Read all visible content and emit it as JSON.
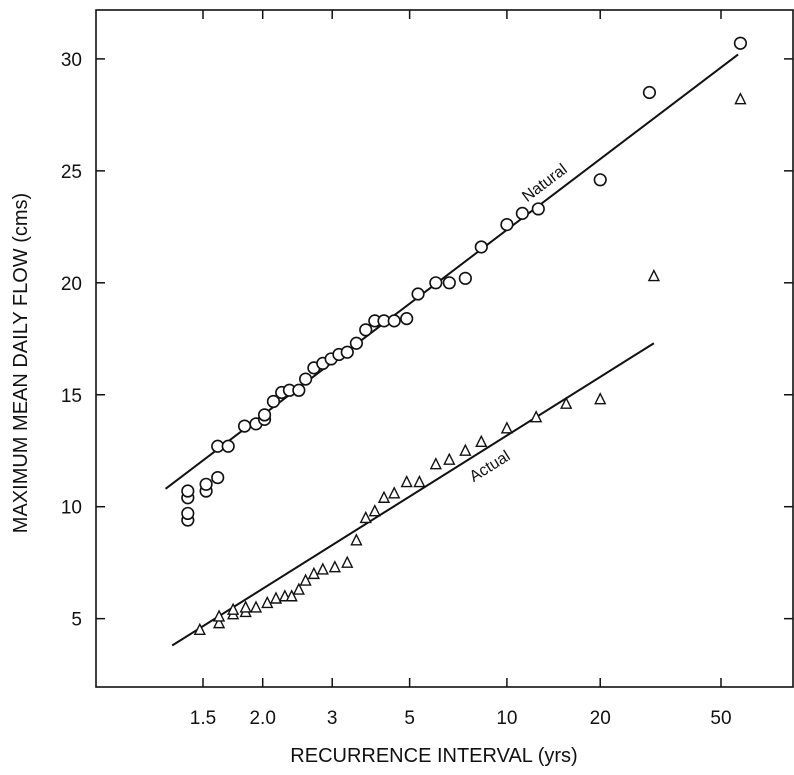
{
  "chart_data": {
    "type": "scatter",
    "title": "",
    "xlabel": "RECURRENCE INTERVAL (yrs)",
    "ylabel": "MAXIMUM MEAN DAILY FLOW (cms)",
    "x_scale": "gumbel-probability",
    "xlim": [
      1.05,
      200
    ],
    "ylim": [
      2,
      33
    ],
    "x_ticks": [
      {
        "value": 1.5,
        "label": "1.5"
      },
      {
        "value": 2.0,
        "label": "2.0"
      },
      {
        "value": 3,
        "label": "3"
      },
      {
        "value": 5,
        "label": "5"
      },
      {
        "value": 10,
        "label": "10"
      },
      {
        "value": 20,
        "label": "20"
      },
      {
        "value": 50,
        "label": "50"
      }
    ],
    "y_ticks": [
      {
        "value": 5,
        "label": "5"
      },
      {
        "value": 10,
        "label": "10"
      },
      {
        "value": 15,
        "label": "15"
      },
      {
        "value": 20,
        "label": "20"
      },
      {
        "value": 25,
        "label": "25"
      },
      {
        "value": 30,
        "label": "30"
      }
    ],
    "grid": false,
    "legend": "none",
    "series": [
      {
        "name": "Natural",
        "marker": "circle",
        "color": "#111111",
        "fit_line": {
          "x": [
            1.3,
            57
          ],
          "y": [
            10.8,
            30.2
          ]
        },
        "points": [
          {
            "x": 1.41,
            "y": 9.4
          },
          {
            "x": 1.41,
            "y": 9.7
          },
          {
            "x": 1.41,
            "y": 10.4
          },
          {
            "x": 1.41,
            "y": 10.7
          },
          {
            "x": 1.52,
            "y": 10.7
          },
          {
            "x": 1.52,
            "y": 11.0
          },
          {
            "x": 1.6,
            "y": 11.3
          },
          {
            "x": 1.6,
            "y": 12.7
          },
          {
            "x": 1.68,
            "y": 12.7
          },
          {
            "x": 1.82,
            "y": 13.6
          },
          {
            "x": 1.93,
            "y": 13.7
          },
          {
            "x": 2.02,
            "y": 13.9
          },
          {
            "x": 2.02,
            "y": 14.1
          },
          {
            "x": 2.12,
            "y": 14.7
          },
          {
            "x": 2.22,
            "y": 15.1
          },
          {
            "x": 2.32,
            "y": 15.2
          },
          {
            "x": 2.45,
            "y": 15.2
          },
          {
            "x": 2.55,
            "y": 15.7
          },
          {
            "x": 2.68,
            "y": 16.2
          },
          {
            "x": 2.83,
            "y": 16.4
          },
          {
            "x": 2.98,
            "y": 16.6
          },
          {
            "x": 3.13,
            "y": 16.8
          },
          {
            "x": 3.3,
            "y": 16.9
          },
          {
            "x": 3.5,
            "y": 17.3
          },
          {
            "x": 3.72,
            "y": 17.9
          },
          {
            "x": 3.95,
            "y": 18.3
          },
          {
            "x": 4.2,
            "y": 18.3
          },
          {
            "x": 4.5,
            "y": 18.3
          },
          {
            "x": 4.9,
            "y": 18.4
          },
          {
            "x": 5.3,
            "y": 19.5
          },
          {
            "x": 6.0,
            "y": 20.0
          },
          {
            "x": 6.6,
            "y": 20.0
          },
          {
            "x": 7.4,
            "y": 20.2
          },
          {
            "x": 8.3,
            "y": 21.6
          },
          {
            "x": 10.0,
            "y": 22.6
          },
          {
            "x": 11.2,
            "y": 23.1
          },
          {
            "x": 12.6,
            "y": 23.3
          },
          {
            "x": 20.0,
            "y": 24.6
          },
          {
            "x": 29.0,
            "y": 28.5
          },
          {
            "x": 58.0,
            "y": 30.7
          }
        ]
      },
      {
        "name": "Actual",
        "marker": "triangle",
        "color": "#111111",
        "fit_line": {
          "x": [
            1.33,
            30
          ],
          "y": [
            3.8,
            17.3
          ]
        },
        "points": [
          {
            "x": 1.48,
            "y": 4.5
          },
          {
            "x": 1.61,
            "y": 4.8
          },
          {
            "x": 1.61,
            "y": 5.1
          },
          {
            "x": 1.72,
            "y": 5.2
          },
          {
            "x": 1.72,
            "y": 5.4
          },
          {
            "x": 1.83,
            "y": 5.3
          },
          {
            "x": 1.83,
            "y": 5.5
          },
          {
            "x": 1.93,
            "y": 5.5
          },
          {
            "x": 2.05,
            "y": 5.7
          },
          {
            "x": 2.15,
            "y": 5.9
          },
          {
            "x": 2.26,
            "y": 6.0
          },
          {
            "x": 2.35,
            "y": 6.0
          },
          {
            "x": 2.45,
            "y": 6.3
          },
          {
            "x": 2.55,
            "y": 6.7
          },
          {
            "x": 2.68,
            "y": 7.0
          },
          {
            "x": 2.83,
            "y": 7.2
          },
          {
            "x": 3.05,
            "y": 7.3
          },
          {
            "x": 3.3,
            "y": 7.5
          },
          {
            "x": 3.5,
            "y": 8.5
          },
          {
            "x": 3.72,
            "y": 9.5
          },
          {
            "x": 3.95,
            "y": 9.8
          },
          {
            "x": 4.2,
            "y": 10.4
          },
          {
            "x": 4.5,
            "y": 10.6
          },
          {
            "x": 4.9,
            "y": 11.1
          },
          {
            "x": 5.35,
            "y": 11.1
          },
          {
            "x": 6.0,
            "y": 11.9
          },
          {
            "x": 6.6,
            "y": 12.1
          },
          {
            "x": 7.4,
            "y": 12.5
          },
          {
            "x": 8.3,
            "y": 12.9
          },
          {
            "x": 10.0,
            "y": 13.5
          },
          {
            "x": 12.4,
            "y": 14.0
          },
          {
            "x": 15.5,
            "y": 14.6
          },
          {
            "x": 20.0,
            "y": 14.8
          },
          {
            "x": 30.0,
            "y": 20.3
          },
          {
            "x": 58.0,
            "y": 28.2
          }
        ]
      }
    ]
  }
}
